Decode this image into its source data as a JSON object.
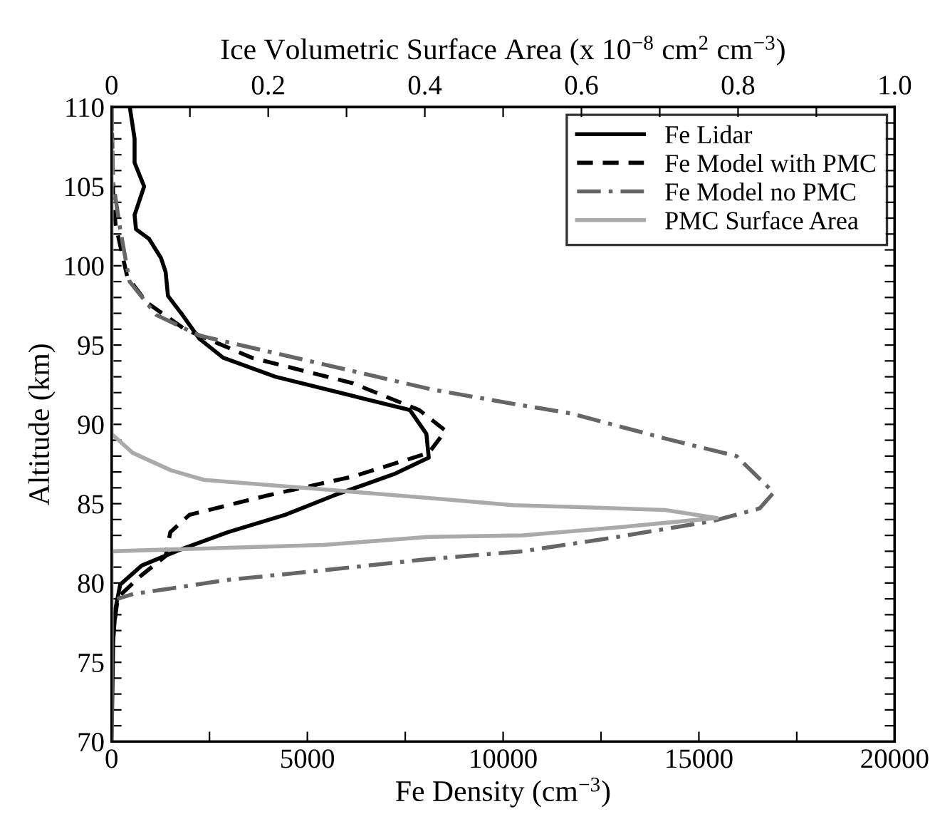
{
  "chart_data": {
    "type": "line",
    "xlabel": "Fe Density (cm$^{−3}$)",
    "ylabel": "Altitude (km)",
    "x2label": "Ice Volumetric Surface Area (x 10$^{−8}$ cm$^{2}$ cm$^{−3}$)",
    "xlim": [
      0,
      20000
    ],
    "xticks": [
      0,
      {
        "value": 2500,
        "label": null
      },
      5000,
      {
        "value": 7500,
        "label": null
      },
      10000,
      {
        "value": 12500,
        "label": null
      },
      15000,
      {
        "value": 17500,
        "label": null
      },
      20000
    ],
    "x2lim": [
      0,
      1.0
    ],
    "x2ticks": [
      {
        "value": 0,
        "label": "0"
      },
      {
        "value": 0.1,
        "label": null
      },
      0.2,
      {
        "value": 0.3,
        "label": null
      },
      0.4,
      {
        "value": 0.5,
        "label": null
      },
      0.6,
      {
        "value": 0.7,
        "label": null
      },
      0.8,
      {
        "value": 0.9,
        "label": null
      },
      {
        "value": 1.0,
        "label": "1.0"
      }
    ],
    "ylim": [
      70,
      110
    ],
    "yticks": [
      70,
      {
        "value": 71,
        "label": null
      },
      {
        "value": 72,
        "label": null
      },
      {
        "value": 73,
        "label": null
      },
      {
        "value": 74,
        "label": null
      },
      75,
      {
        "value": 76,
        "label": null
      },
      {
        "value": 77,
        "label": null
      },
      {
        "value": 78,
        "label": null
      },
      {
        "value": 79,
        "label": null
      },
      80,
      {
        "value": 81,
        "label": null
      },
      {
        "value": 82,
        "label": null
      },
      {
        "value": 83,
        "label": null
      },
      {
        "value": 84,
        "label": null
      },
      85,
      {
        "value": 86,
        "label": null
      },
      {
        "value": 87,
        "label": null
      },
      {
        "value": 88,
        "label": null
      },
      {
        "value": 89,
        "label": null
      },
      90,
      {
        "value": 91,
        "label": null
      },
      {
        "value": 92,
        "label": null
      },
      {
        "value": 93,
        "label": null
      },
      {
        "value": 94,
        "label": null
      },
      95,
      {
        "value": 96,
        "label": null
      },
      {
        "value": 97,
        "label": null
      },
      {
        "value": 98,
        "label": null
      },
      {
        "value": 99,
        "label": null
      },
      100,
      {
        "value": 101,
        "label": null
      },
      {
        "value": 102,
        "label": null
      },
      {
        "value": 103,
        "label": null
      },
      {
        "value": 104,
        "label": null
      },
      105,
      {
        "value": 106,
        "label": null
      },
      {
        "value": 107,
        "label": null
      },
      {
        "value": 108,
        "label": null
      },
      {
        "value": 109,
        "label": null
      },
      110
    ],
    "grid": false,
    "legend": "top right",
    "marker": "none",
    "series": [
      {
        "name": "Fe Lidar",
        "color": "#000000",
        "line_style": "solid",
        "x": [
          465,
          587,
          587,
          831,
          587,
          623,
          954,
          1260,
          1380,
          1440,
          1810,
          2240,
          2850,
          4190,
          6150,
          7620,
          8040,
          8100,
          7250,
          5660,
          4440,
          2970,
          1750,
          770,
          220,
          100,
          40,
          0
        ],
        "values": [
          110,
          108,
          106.5,
          105,
          103.2,
          102.3,
          101.7,
          100.5,
          99.6,
          98.1,
          96.9,
          95.4,
          94.2,
          93.0,
          91.8,
          90.9,
          89.4,
          87.9,
          86.9,
          85.5,
          84.3,
          83.2,
          82.1,
          81.1,
          79.9,
          78.4,
          76.3,
          70
        ]
      },
      {
        "name": "Fe Model with PMC",
        "color": "#000000",
        "line_style": "dashed",
        "x": [
          0,
          37,
          100,
          400,
          890,
          1870,
          3580,
          6150,
          7860,
          8530,
          8100,
          6150,
          3950,
          1990,
          1500,
          1380,
          770,
          160,
          40
        ],
        "values": [
          110,
          104.7,
          102.6,
          99.3,
          97.7,
          96.0,
          94.2,
          92.6,
          90.9,
          89.6,
          88.2,
          86.7,
          85.5,
          84.3,
          83.2,
          81.7,
          80.5,
          79.1,
          76.9
        ]
      },
      {
        "name": "Fe Model no PMC",
        "color": "#666666",
        "line_style": "dashdot",
        "x": [
          0,
          37,
          220,
          460,
          1140,
          2240,
          8180,
          10250,
          11710,
          14150,
          15960,
          16910,
          16550,
          15350,
          12910,
          10500,
          8070,
          5420,
          2980,
          550,
          145
        ],
        "values": [
          110,
          105.3,
          102.3,
          99.0,
          96.9,
          95.6,
          92.2,
          91.3,
          90.7,
          89.1,
          88.0,
          85.7,
          84.7,
          83.9,
          82.9,
          82.0,
          81.5,
          80.8,
          80.2,
          79.3,
          79.0
        ]
      },
      {
        "name": "PMC Surface Area",
        "color": "#aaaaaa",
        "line_style": "solid",
        "axis": "x2",
        "x": [
          0,
          0,
          0.027,
          0.076,
          0.118,
          0.27,
          0.42,
          0.513,
          0.585,
          0.707,
          0.773,
          0.645,
          0.525,
          0.404,
          0.27,
          0,
          0
        ],
        "values": [
          110,
          89.4,
          88.2,
          87.1,
          86.5,
          85.9,
          85.3,
          84.9,
          84.8,
          84.6,
          84.1,
          83.5,
          83.0,
          82.9,
          82.4,
          82.0,
          70
        ]
      }
    ]
  }
}
